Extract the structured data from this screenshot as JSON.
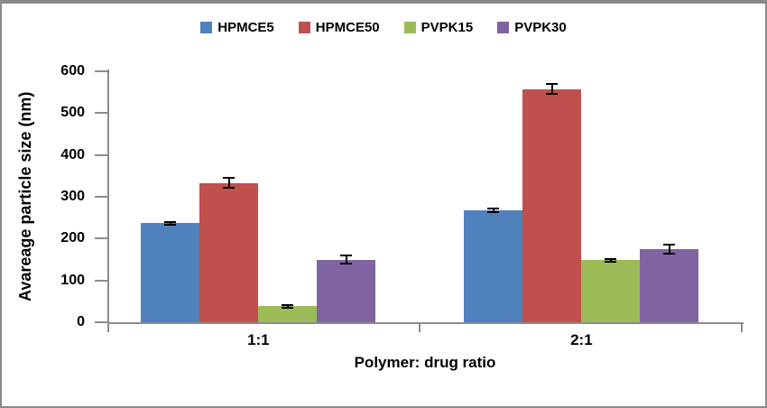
{
  "frame": {
    "border_color": "#8a8a8a",
    "background": "#ffffff",
    "text_color": "#000000",
    "axis_color": "#8c8c8c"
  },
  "chart_data": {
    "type": "bar",
    "title": "",
    "xlabel": "Polymer: drug ratio",
    "ylabel": "Avareage particle size (nm)",
    "categories": [
      "1:1",
      "2:1"
    ],
    "series": [
      {
        "name": "HPMCE5",
        "color": "#4F81BD",
        "values": [
          237,
          268
        ],
        "errors": [
          3,
          4
        ]
      },
      {
        "name": "HPMCE50",
        "color": "#C0504D",
        "values": [
          333,
          557
        ],
        "errors": [
          12,
          12
        ]
      },
      {
        "name": "PVPK15",
        "color": "#9BBB59",
        "values": [
          38,
          148
        ],
        "errors": [
          4,
          3
        ]
      },
      {
        "name": "PVPK30",
        "color": "#8064A2",
        "values": [
          150,
          175
        ],
        "errors": [
          10,
          11
        ]
      }
    ],
    "ylim": [
      0,
      600
    ],
    "ytick_step": 100,
    "yticks": [
      0,
      100,
      200,
      300,
      400,
      500,
      600
    ],
    "grid": false,
    "error_bars": true,
    "legend_position": "top"
  }
}
